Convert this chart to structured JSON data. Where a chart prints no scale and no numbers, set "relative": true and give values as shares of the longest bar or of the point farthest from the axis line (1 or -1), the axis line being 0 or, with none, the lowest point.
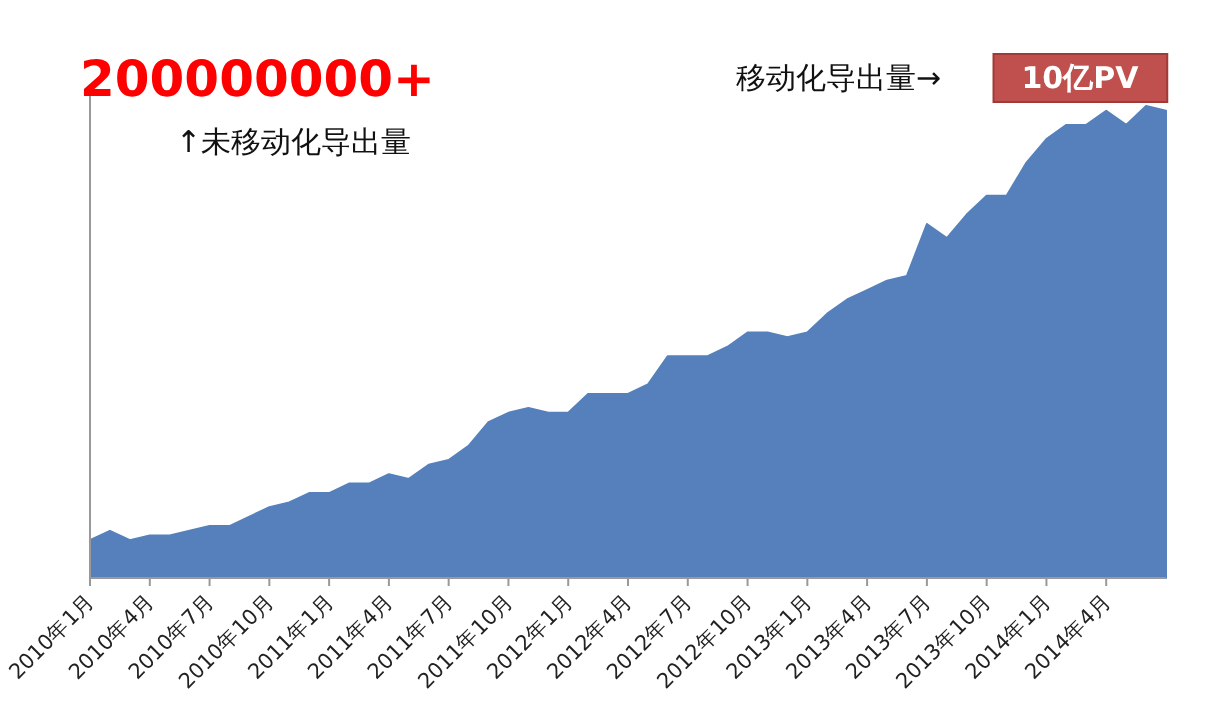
{
  "chart_data": {
    "type": "area",
    "relative": true,
    "categories": [
      "2010年1月",
      null,
      null,
      "2010年4月",
      null,
      null,
      "2010年7月",
      null,
      null,
      "2010年10月",
      null,
      null,
      "2011年1月",
      null,
      null,
      "2011年4月",
      null,
      null,
      "2011年7月",
      null,
      null,
      "2011年10月",
      null,
      null,
      "2012年1月",
      null,
      null,
      "2012年4月",
      null,
      null,
      "2012年7月",
      null,
      null,
      "2012年10月",
      null,
      null,
      "2013年1月",
      null,
      null,
      "2013年4月",
      null,
      null,
      "2013年7月",
      null,
      null,
      "2013年10月",
      null,
      null,
      "2014年1月",
      null,
      null,
      "2014年4月",
      null,
      null,
      null
    ],
    "series": [
      {
        "color": "#5580bb",
        "values": [
          0.08,
          0.1,
          0.08,
          0.09,
          0.09,
          0.1,
          0.11,
          0.11,
          0.13,
          0.15,
          0.16,
          0.18,
          0.18,
          0.2,
          0.2,
          0.22,
          0.21,
          0.24,
          0.25,
          0.28,
          0.33,
          0.35,
          0.36,
          0.35,
          0.35,
          0.39,
          0.39,
          0.39,
          0.41,
          0.47,
          0.47,
          0.47,
          0.49,
          0.52,
          0.52,
          0.51,
          0.52,
          0.56,
          0.59,
          0.61,
          0.63,
          0.64,
          0.75,
          0.72,
          0.77,
          0.81,
          0.81,
          0.88,
          0.93,
          0.96,
          0.96,
          0.99,
          0.96,
          1.0,
          0.99
        ]
      }
    ],
    "annotations": [
      "200000000+",
      "↑未移动化导出量",
      "移动化导出量→",
      "10亿PV"
    ],
    "grid": false
  }
}
